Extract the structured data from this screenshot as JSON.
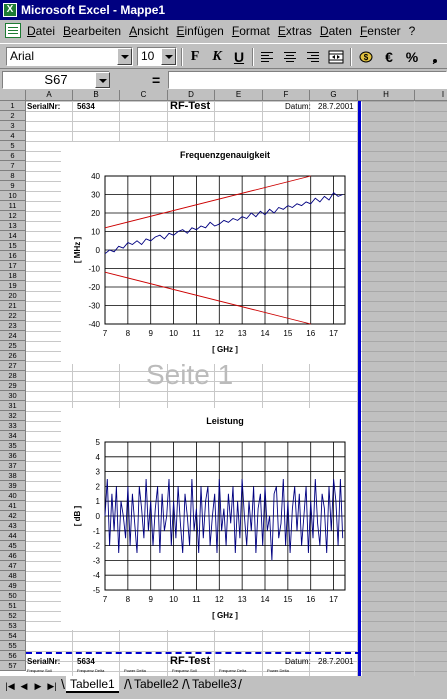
{
  "window": {
    "title": "Microsoft Excel - Mappe1"
  },
  "menu": {
    "items": [
      "Datei",
      "Bearbeiten",
      "Ansicht",
      "Einfügen",
      "Format",
      "Extras",
      "Daten",
      "Fenster",
      "?"
    ]
  },
  "toolbar": {
    "font_name": "Arial",
    "font_size": "10",
    "bold_label": "F",
    "italic_label": "K",
    "underline_label": "U",
    "euro_label": "€",
    "percent_label": "%"
  },
  "formula_bar": {
    "name_box": "S67",
    "eq": "="
  },
  "columns": [
    "A",
    "B",
    "C",
    "D",
    "E",
    "F",
    "G",
    "H",
    "I"
  ],
  "rows": [
    "1",
    "2",
    "3",
    "4",
    "5",
    "6",
    "7",
    "8",
    "9",
    "10",
    "11",
    "12",
    "13",
    "14",
    "15",
    "16",
    "17",
    "18",
    "19",
    "20",
    "21",
    "22",
    "23",
    "24",
    "25",
    "26",
    "27",
    "28",
    "29",
    "30",
    "31",
    "32",
    "33",
    "34",
    "35",
    "36",
    "37",
    "38",
    "39",
    "40",
    "41",
    "42",
    "43",
    "44",
    "45",
    "46",
    "47",
    "48",
    "49",
    "50",
    "51",
    "52",
    "53",
    "54",
    "55",
    "56",
    "57"
  ],
  "header_row": {
    "serial_label": "SerialNr:",
    "serial_value": "5634",
    "title": "RF-Test",
    "date_label": "Datum:",
    "date_value": "28.7.2001"
  },
  "header_row_2": {
    "serial_label": "SerialNr:",
    "serial_value": "5634",
    "title": "RF-Test",
    "date_label": "Datum:",
    "date_value": "28.7.2001"
  },
  "row57_labels": [
    "Frequenz Soll",
    "Frequenz Delta",
    "Power Delta",
    "Frequenz Soll",
    "Frequenz Delta",
    "Power Delta"
  ],
  "watermark": "Seite 1",
  "chart_data": [
    {
      "type": "line",
      "title": "Frequenzgenauigkeit",
      "xlabel": "[ GHz ]",
      "ylabel": "[ MHz ]",
      "xlim": [
        7,
        17.5
      ],
      "ylim": [
        -40,
        40
      ],
      "xticks": [
        "7",
        "8",
        "9",
        "10",
        "11",
        "12",
        "13",
        "14",
        "15",
        "16",
        "17"
      ],
      "yticks": [
        "40",
        "30",
        "20",
        "10",
        "0",
        "-10",
        "-20",
        "-30",
        "-40"
      ],
      "grid": true,
      "series": [
        {
          "color": "#cc0000",
          "x": [
            7,
            16
          ],
          "values": [
            12,
            40
          ]
        },
        {
          "color": "#cc0000",
          "x": [
            7,
            16
          ],
          "values": [
            -12,
            -40
          ]
        },
        {
          "color": "#000080",
          "x": [
            7.0,
            7.2,
            7.4,
            7.6,
            7.8,
            8.0,
            8.2,
            8.4,
            8.6,
            8.8,
            9.0,
            9.2,
            9.4,
            9.6,
            9.8,
            10.0,
            10.2,
            10.4,
            10.6,
            10.8,
            11.0,
            11.2,
            11.4,
            11.6,
            11.8,
            12.0,
            12.2,
            12.4,
            12.6,
            12.8,
            13.0,
            13.2,
            13.4,
            13.6,
            13.8,
            14.0,
            14.2,
            14.4,
            14.6,
            14.8,
            15.0,
            15.2,
            15.4,
            15.6,
            15.8,
            16.0,
            16.2,
            16.4,
            16.6,
            16.8,
            17.0,
            17.2,
            17.4
          ],
          "values": [
            -2,
            0,
            -1,
            2,
            1,
            4,
            3,
            5,
            3,
            6,
            5,
            7,
            8,
            6,
            9,
            8,
            10,
            11,
            9,
            12,
            11,
            13,
            12,
            15,
            13,
            14,
            16,
            15,
            17,
            16,
            18,
            17,
            20,
            18,
            21,
            19,
            22,
            20,
            23,
            22,
            24,
            23,
            25,
            24,
            26,
            25,
            28,
            26,
            29,
            27,
            31,
            29,
            30
          ]
        }
      ]
    },
    {
      "type": "line",
      "title": "Leistung",
      "xlabel": "[ GHz ]",
      "ylabel": "[ dB ]",
      "xlim": [
        7,
        17.5
      ],
      "ylim": [
        -5,
        5
      ],
      "xticks": [
        "7",
        "8",
        "9",
        "10",
        "11",
        "12",
        "13",
        "14",
        "15",
        "16",
        "17"
      ],
      "yticks": [
        "5",
        "4",
        "3",
        "2",
        "1",
        "0",
        "-1",
        "-2",
        "-3",
        "-4",
        "-5"
      ],
      "grid": true,
      "series": [
        {
          "color": "#000080",
          "x": [
            7.0,
            7.1,
            7.2,
            7.3,
            7.4,
            7.5,
            7.6,
            7.7,
            7.8,
            7.9,
            8.0,
            8.1,
            8.2,
            8.3,
            8.4,
            8.5,
            8.6,
            8.7,
            8.8,
            8.9,
            9.0,
            9.1,
            9.2,
            9.3,
            9.4,
            9.5,
            9.6,
            9.7,
            9.8,
            9.9,
            10.0,
            10.1,
            10.2,
            10.3,
            10.4,
            10.5,
            10.6,
            10.7,
            10.8,
            10.9,
            11.0,
            11.1,
            11.2,
            11.3,
            11.4,
            11.5,
            11.6,
            11.7,
            11.8,
            11.9,
            12.0,
            12.1,
            12.2,
            12.3,
            12.4,
            12.5,
            12.6,
            12.7,
            12.8,
            12.9,
            13.0,
            13.1,
            13.2,
            13.3,
            13.4,
            13.5,
            13.6,
            13.7,
            13.8,
            13.9,
            14.0,
            14.1,
            14.2,
            14.3,
            14.4,
            14.5,
            14.6,
            14.7,
            14.8,
            14.9,
            15.0,
            15.1,
            15.2,
            15.3,
            15.4,
            15.5,
            15.6,
            15.7,
            15.8,
            15.9,
            16.0,
            16.1,
            16.2,
            16.3,
            16.4,
            16.5,
            16.6,
            16.7,
            16.8,
            16.9,
            17.0,
            17.1,
            17.2,
            17.3,
            17.4
          ],
          "values": [
            0,
            2.5,
            -2,
            1.5,
            -1,
            2,
            -2.5,
            1,
            0,
            -1.5,
            2,
            -2,
            1.5,
            -0.5,
            -2.5,
            2,
            0.5,
            -1.5,
            2.5,
            -1,
            1,
            -2,
            0.5,
            2,
            -2.5,
            1.5,
            -1,
            0,
            2.5,
            -2,
            1,
            -1.5,
            2,
            -0.5,
            -2.5,
            1.5,
            0,
            -2,
            2.5,
            -1,
            0.5,
            -2.5,
            2,
            -1.5,
            1,
            2,
            -2,
            0,
            1.5,
            -2.5,
            2.5,
            -1,
            0.5,
            -2,
            1.5,
            -0.5,
            2,
            -2.5,
            1,
            -1.5,
            2.5,
            0,
            -2,
            1,
            -1,
            2,
            -2.5,
            0.5,
            1.5,
            -2,
            2,
            -1,
            0,
            -3,
            1.5,
            2,
            -1.5,
            -0.5,
            2.5,
            -2,
            1,
            -2.5,
            0.5,
            2,
            -1,
            1.5,
            -2,
            0,
            2,
            -2.5,
            1,
            -1.5,
            2.5,
            -0.5,
            -2,
            1.5,
            0.5,
            -2.5,
            2,
            -1,
            2.5,
            1,
            -2,
            2.5,
            -1.5
          ]
        }
      ]
    }
  ],
  "sheet_tabs": [
    "Tabelle1",
    "Tabelle2",
    "Tabelle3"
  ],
  "colors": {
    "title_bar": "#000080",
    "page_border": "#0000d0",
    "chart_series": "#000080",
    "limit_lines": "#cc0000"
  }
}
